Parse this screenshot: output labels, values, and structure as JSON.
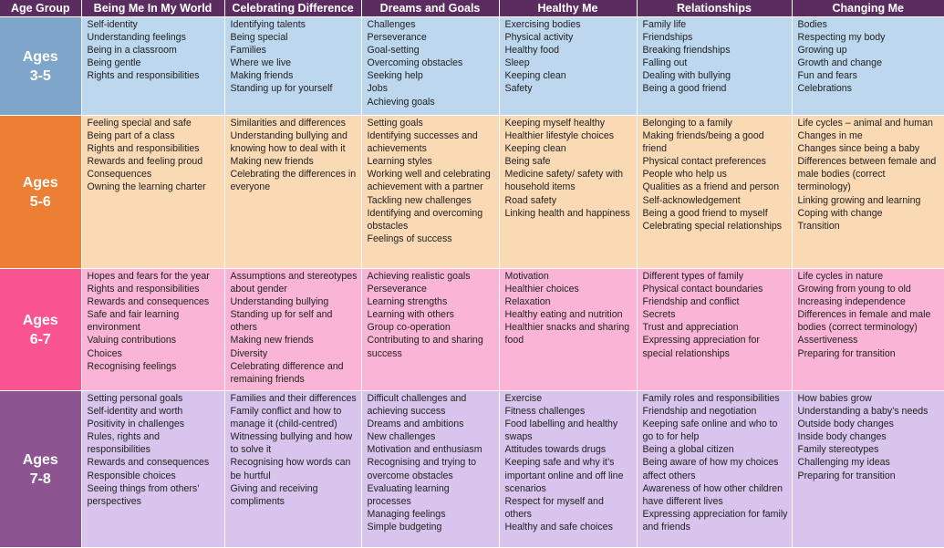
{
  "headers": [
    "Age Group",
    "Being Me In My World",
    "Celebrating Difference",
    "Dreams and Goals",
    "Healthy Me",
    "Relationships",
    "Changing Me"
  ],
  "colors": {
    "header_bg": "#5b2c5f",
    "rows": [
      {
        "age_bg": "#7ea6cb",
        "cell_bg": "#bcd7ee"
      },
      {
        "age_bg": "#ed7f35",
        "cell_bg": "#fad9b5"
      },
      {
        "age_bg": "#fb5492",
        "cell_bg": "#fab5d6"
      },
      {
        "age_bg": "#8c5591",
        "cell_bg": "#d8c4ec"
      }
    ]
  },
  "rows": [
    {
      "age": [
        "Ages",
        "3-5"
      ],
      "cells": [
        [
          "Self-identity",
          "Understanding feelings",
          "Being in a classroom",
          "Being gentle",
          "Rights and responsibilities"
        ],
        [
          "Identifying talents",
          "Being special",
          "Families",
          "Where we live",
          "Making friends",
          "Standing up for yourself"
        ],
        [
          "Challenges",
          "Perseverance",
          "Goal-setting",
          "Overcoming obstacles",
          "Seeking help",
          "Jobs",
          "Achieving goals"
        ],
        [
          "Exercising bodies",
          "Physical activity",
          "Healthy food",
          "Sleep",
          "Keeping clean",
          "Safety"
        ],
        [
          "Family life",
          "Friendships",
          "Breaking friendships",
          "Falling out",
          "Dealing with bullying",
          "Being a good friend"
        ],
        [
          "Bodies",
          "Respecting my body",
          "Growing up",
          "Growth and change",
          "Fun and fears",
          "Celebrations"
        ]
      ]
    },
    {
      "age": [
        "Ages",
        "5-6"
      ],
      "cells": [
        [
          "Feeling special and safe",
          "Being part of a class",
          "Rights and responsibilities",
          "Rewards and feeling proud",
          "Consequences",
          "Owning the learning charter"
        ],
        [
          "Similarities and differences",
          "Understanding bullying and knowing how to deal with it",
          "Making new friends",
          "Celebrating the differences in everyone"
        ],
        [
          "Setting goals",
          "Identifying successes and achievements",
          "Learning styles",
          "Working well and celebrating achievement with a partner",
          "Tackling new challenges",
          "Identifying and overcoming obstacles",
          "Feelings of success"
        ],
        [
          "Keeping myself healthy",
          "Healthier lifestyle choices",
          "Keeping clean",
          "Being safe",
          "Medicine safety/ safety with household items",
          "Road safety",
          "Linking health and happiness"
        ],
        [
          "Belonging to a family",
          "Making friends/being a good friend",
          "Physical contact preferences",
          "People who help us",
          "Qualities as a friend and person",
          "Self-acknowledgement",
          "Being a good friend to myself",
          "Celebrating special relationships"
        ],
        [
          "Life cycles – animal and human",
          "Changes in me",
          "Changes since being a baby",
          "Differences between female and male bodies (correct terminology)",
          "Linking growing and learning",
          "Coping with change",
          "Transition"
        ]
      ]
    },
    {
      "age": [
        "Ages",
        "6-7"
      ],
      "cells": [
        [
          "Hopes and fears for the year",
          "Rights and responsibilities",
          "Rewards and consequences",
          "Safe and fair learning environment",
          "Valuing contributions",
          "Choices",
          "Recognising feelings"
        ],
        [
          "Assumptions and stereotypes about gender",
          "Understanding bullying",
          "Standing up for self and others",
          "Making new friends",
          "Diversity",
          "Celebrating difference and remaining friends"
        ],
        [
          "Achieving realistic goals",
          "Perseverance",
          "Learning strengths",
          "Learning with others",
          "Group co-operation",
          "Contributing to and sharing success"
        ],
        [
          "Motivation",
          "Healthier choices",
          "Relaxation",
          "Healthy eating and nutrition",
          "Healthier snacks and sharing food"
        ],
        [
          "Different types of family",
          "Physical contact boundaries",
          "Friendship and conflict",
          "Secrets",
          "Trust and appreciation",
          "Expressing appreciation for special relationships"
        ],
        [
          "Life cycles in nature",
          "Growing from young to old",
          "Increasing independence",
          "Differences in female and male bodies (correct terminology)",
          "Assertiveness",
          "Preparing for transition"
        ]
      ]
    },
    {
      "age": [
        "Ages",
        "7-8"
      ],
      "cells": [
        [
          "Setting personal goals",
          "Self-identity and worth",
          "Positivity in challenges",
          "Rules, rights and responsibilities",
          "Rewards and consequences",
          "Responsible choices",
          "Seeing things from others’ perspectives"
        ],
        [
          "Families and their differences",
          "Family conflict and how to manage it (child-centred)",
          "Witnessing bullying and how to solve it",
          "Recognising how words can be hurtful",
          "Giving and receiving compliments"
        ],
        [
          "Difficult challenges and achieving success",
          "Dreams and ambitions",
          "New challenges",
          "Motivation and enthusiasm",
          "Recognising and trying to overcome obstacles",
          "Evaluating learning processes",
          "Managing feelings",
          "Simple budgeting"
        ],
        [
          "Exercise",
          "Fitness challenges",
          "Food labelling and healthy swaps",
          "Attitudes towards drugs",
          "Keeping safe and why it’s important online and off line scenarios",
          "Respect for myself and others",
          "Healthy and safe choices"
        ],
        [
          "Family roles and responsibilities",
          "Friendship and negotiation",
          "Keeping safe online and who to go to for help",
          "Being a global citizen",
          "Being aware of how my choices affect others",
          "Awareness of how other children have different lives",
          "Expressing appreciation for family and friends"
        ],
        [
          "How babies grow",
          "Understanding a baby’s needs",
          "Outside body changes",
          "Inside body changes",
          "Family stereotypes",
          "Challenging my ideas",
          "Preparing for transition"
        ]
      ]
    }
  ]
}
